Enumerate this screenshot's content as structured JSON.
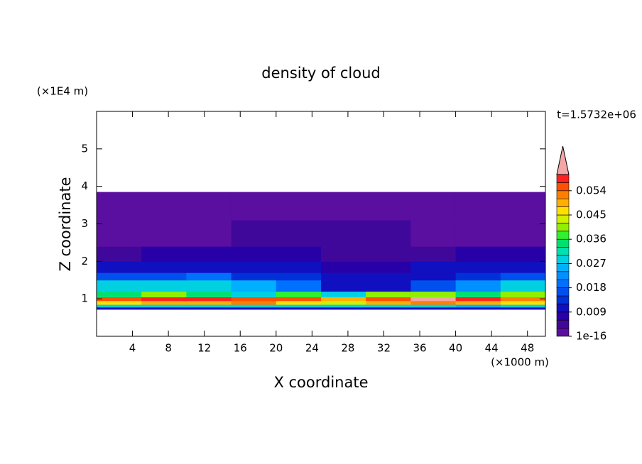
{
  "chart_data": {
    "type": "contour",
    "title": "density of cloud",
    "x_label": "X coordinate",
    "y_label": "Z coordinate",
    "x_unit": "(×1000 m)",
    "y_unit": "(×1E4 m)",
    "annotation": "t=1.5732e+06",
    "xlim": [
      0,
      50
    ],
    "ylim": [
      0,
      6
    ],
    "xticks": [
      4,
      8,
      12,
      16,
      20,
      24,
      28,
      32,
      36,
      40,
      44,
      48
    ],
    "yticks": [
      1,
      2,
      3,
      4,
      5
    ],
    "x": [
      0,
      5,
      10,
      15,
      20,
      25,
      30,
      35,
      40,
      45,
      50
    ],
    "y": [
      0.72,
      0.78,
      0.85,
      0.95,
      1.05,
      1.2,
      1.5,
      1.7,
      2.0,
      2.4,
      3.1,
      3.85
    ],
    "values": [
      [
        0.012,
        0.012,
        0.012,
        0.012,
        0.012,
        0.012,
        0.012,
        0.012,
        0.012,
        0.012
      ],
      [
        0.03,
        0.03,
        0.028,
        0.03,
        0.03,
        0.028,
        0.03,
        0.03,
        0.025,
        0.03
      ],
      [
        0.048,
        0.05,
        0.05,
        0.052,
        0.048,
        0.045,
        0.05,
        0.052,
        0.05,
        0.048
      ],
      [
        0.055,
        0.058,
        0.058,
        0.057,
        0.055,
        0.05,
        0.055,
        0.062,
        0.058,
        0.052
      ],
      [
        0.036,
        0.04,
        0.035,
        0.03,
        0.038,
        0.03,
        0.04,
        0.042,
        0.035,
        0.04
      ],
      [
        0.03,
        0.028,
        0.03,
        0.025,
        0.02,
        0.012,
        0.012,
        0.018,
        0.022,
        0.03
      ],
      [
        0.016,
        0.018,
        0.02,
        0.015,
        0.014,
        0.012,
        0.01,
        0.012,
        0.015,
        0.016
      ],
      [
        0.01,
        0.012,
        0.012,
        0.01,
        0.01,
        0.009,
        0.009,
        0.01,
        0.012,
        0.012
      ],
      [
        0.006,
        0.007,
        0.007,
        0.008,
        0.008,
        0.006,
        0.006,
        0.006,
        0.007,
        0.007
      ],
      [
        0.003,
        0.003,
        0.003,
        0.004,
        0.005,
        0.005,
        0.004,
        0.003,
        0.003,
        0.003
      ],
      [
        0.001,
        0.001,
        0.001,
        0.001,
        0.001,
        0.001,
        0.001,
        0.001,
        0.001,
        0.001
      ]
    ],
    "clim": [
      1e-16,
      0.06
    ],
    "level_step": 0.003,
    "colors": [
      "#5a0fa0",
      "#40089a",
      "#2800a8",
      "#1010c0",
      "#0030d8",
      "#0050ee",
      "#0070ff",
      "#0090ff",
      "#00b0ff",
      "#00d0e0",
      "#00e0b0",
      "#00e070",
      "#30f030",
      "#90f000",
      "#d0f000",
      "#ffe000",
      "#ffb000",
      "#ff8000",
      "#ff5000",
      "#ff2020"
    ],
    "over_color": "#f4a6a6",
    "cticks": [
      {
        "value": 1e-16,
        "label": "1e-16"
      },
      0.009,
      0.018,
      0.027,
      0.036,
      0.045,
      0.054
    ]
  }
}
